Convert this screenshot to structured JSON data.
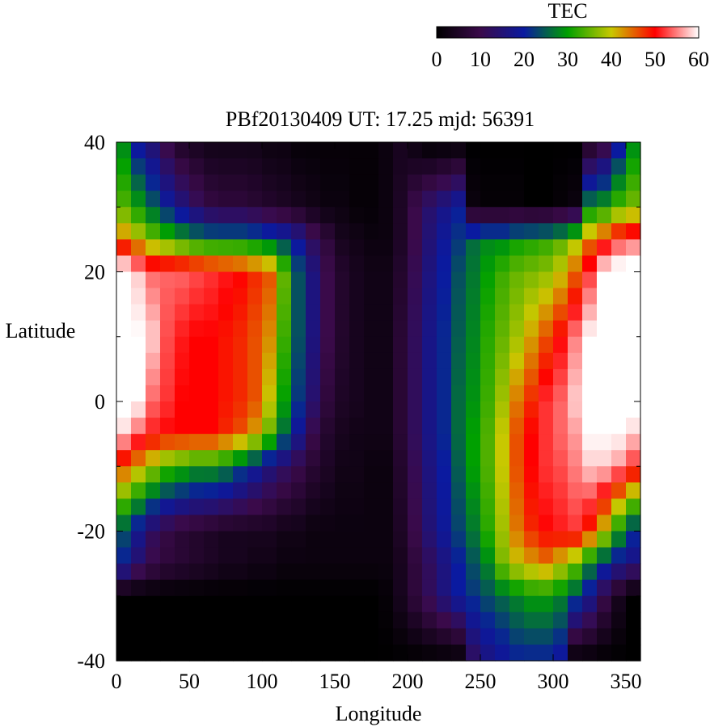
{
  "chart_data": {
    "type": "heatmap",
    "title": "PBf20130409  UT: 17.25  mjd: 56391",
    "xlabel": "Longitude",
    "ylabel": "Latitude",
    "xlim": [
      0,
      360
    ],
    "ylim": [
      -40,
      40
    ],
    "x_ticks": [
      "0",
      "50",
      "100",
      "150",
      "200",
      "250",
      "300",
      "350"
    ],
    "y_ticks": [
      "-40",
      "-20",
      "0",
      "20",
      "40"
    ],
    "colorbar": {
      "label": "TEC",
      "range": [
        0,
        60
      ],
      "ticks": [
        "0",
        "10",
        "20",
        "30",
        "40",
        "50",
        "60"
      ],
      "palette": [
        "#000000",
        "#3a0a4a",
        "#0a1aa0",
        "#00a000",
        "#c8c800",
        "#ff0000",
        "#ffffff"
      ]
    },
    "cell_size": {
      "lon_deg": 10,
      "lat_deg": 2.5
    },
    "longitudes": [
      0,
      10,
      20,
      30,
      40,
      50,
      60,
      70,
      80,
      90,
      100,
      110,
      120,
      130,
      140,
      150,
      160,
      170,
      180,
      190,
      200,
      210,
      220,
      230,
      240,
      250,
      260,
      270,
      280,
      290,
      300,
      310,
      320,
      330,
      340,
      350
    ],
    "latitudes": [
      40,
      30,
      25,
      20,
      10,
      0,
      -5,
      -10,
      -20,
      -25,
      -30,
      -40
    ],
    "tec_grid": [
      [
        28,
        18,
        14,
        9,
        5,
        4,
        3,
        3,
        3,
        3,
        2,
        2,
        1,
        1,
        1,
        1,
        1,
        1,
        2,
        4,
        2,
        0,
        0,
        0,
        0,
        0,
        0,
        0,
        0,
        0,
        0,
        0,
        4,
        8,
        18,
        28
      ],
      [
        34,
        30,
        25,
        20,
        16,
        12,
        9,
        8,
        8,
        7,
        6,
        5,
        4,
        3,
        2,
        2,
        1,
        1,
        2,
        5,
        10,
        14,
        17,
        20,
        2,
        1,
        1,
        1,
        0,
        0,
        1,
        2,
        28,
        30,
        34,
        36
      ],
      [
        44,
        40,
        36,
        33,
        30,
        28,
        27,
        27,
        27,
        26,
        24,
        22,
        18,
        12,
        8,
        4,
        3,
        2,
        2,
        5,
        10,
        15,
        19,
        22,
        26,
        28,
        28,
        30,
        31,
        32,
        34,
        38,
        44,
        48,
        52,
        54
      ],
      [
        62,
        58,
        54,
        54,
        54,
        53,
        52,
        51,
        50,
        48,
        46,
        35,
        24,
        16,
        10,
        6,
        4,
        3,
        3,
        6,
        11,
        16,
        20,
        24,
        27,
        30,
        33,
        35,
        36,
        37,
        40,
        45,
        52,
        60,
        62,
        62
      ],
      [
        62,
        60,
        58,
        53,
        51,
        50,
        50,
        49,
        48,
        46,
        43,
        33,
        24,
        16,
        10,
        6,
        4,
        3,
        3,
        7,
        12,
        17,
        21,
        25,
        28,
        32,
        35,
        38,
        42,
        46,
        50,
        55,
        60,
        62,
        62,
        62
      ],
      [
        62,
        60,
        54,
        52,
        50,
        50,
        50,
        49,
        48,
        46,
        40,
        30,
        22,
        14,
        8,
        5,
        4,
        3,
        3,
        7,
        12,
        17,
        21,
        26,
        29,
        33,
        38,
        44,
        48,
        52,
        54,
        58,
        60,
        62,
        62,
        62
      ],
      [
        58,
        54,
        51,
        50,
        50,
        50,
        50,
        48,
        46,
        42,
        35,
        26,
        18,
        10,
        6,
        4,
        3,
        3,
        3,
        7,
        12,
        17,
        21,
        26,
        30,
        34,
        40,
        46,
        50,
        52,
        54,
        56,
        60,
        60,
        60,
        58
      ],
      [
        46,
        42,
        38,
        34,
        32,
        30,
        30,
        28,
        24,
        20,
        16,
        13,
        10,
        7,
        5,
        3,
        3,
        2,
        2,
        6,
        11,
        16,
        20,
        25,
        30,
        34,
        40,
        46,
        50,
        52,
        53,
        55,
        58,
        58,
        56,
        52
      ],
      [
        24,
        18,
        12,
        9,
        7,
        6,
        5,
        4,
        4,
        4,
        4,
        3,
        3,
        2,
        2,
        2,
        2,
        2,
        2,
        5,
        10,
        15,
        19,
        23,
        27,
        32,
        38,
        44,
        48,
        50,
        51,
        52,
        48,
        40,
        30,
        22
      ],
      [
        20,
        14,
        10,
        8,
        7,
        6,
        5,
        4,
        4,
        3,
        3,
        2,
        2,
        2,
        2,
        2,
        2,
        2,
        2,
        4,
        8,
        12,
        16,
        20,
        24,
        28,
        36,
        40,
        42,
        44,
        40,
        36,
        28,
        22,
        18,
        16
      ],
      [
        0,
        0,
        0,
        0,
        0,
        0,
        0,
        0,
        0,
        0,
        0,
        0,
        0,
        0,
        0,
        0,
        0,
        0,
        1,
        4,
        8,
        12,
        16,
        20,
        22,
        24,
        26,
        28,
        30,
        30,
        28,
        24,
        18,
        10,
        4,
        0
      ],
      [
        0,
        0,
        0,
        0,
        0,
        0,
        0,
        0,
        0,
        0,
        0,
        0,
        0,
        0,
        0,
        0,
        0,
        0,
        0,
        0,
        0,
        0,
        0,
        0,
        12,
        16,
        18,
        20,
        20,
        20,
        18,
        0,
        0,
        0,
        0,
        0
      ]
    ]
  }
}
